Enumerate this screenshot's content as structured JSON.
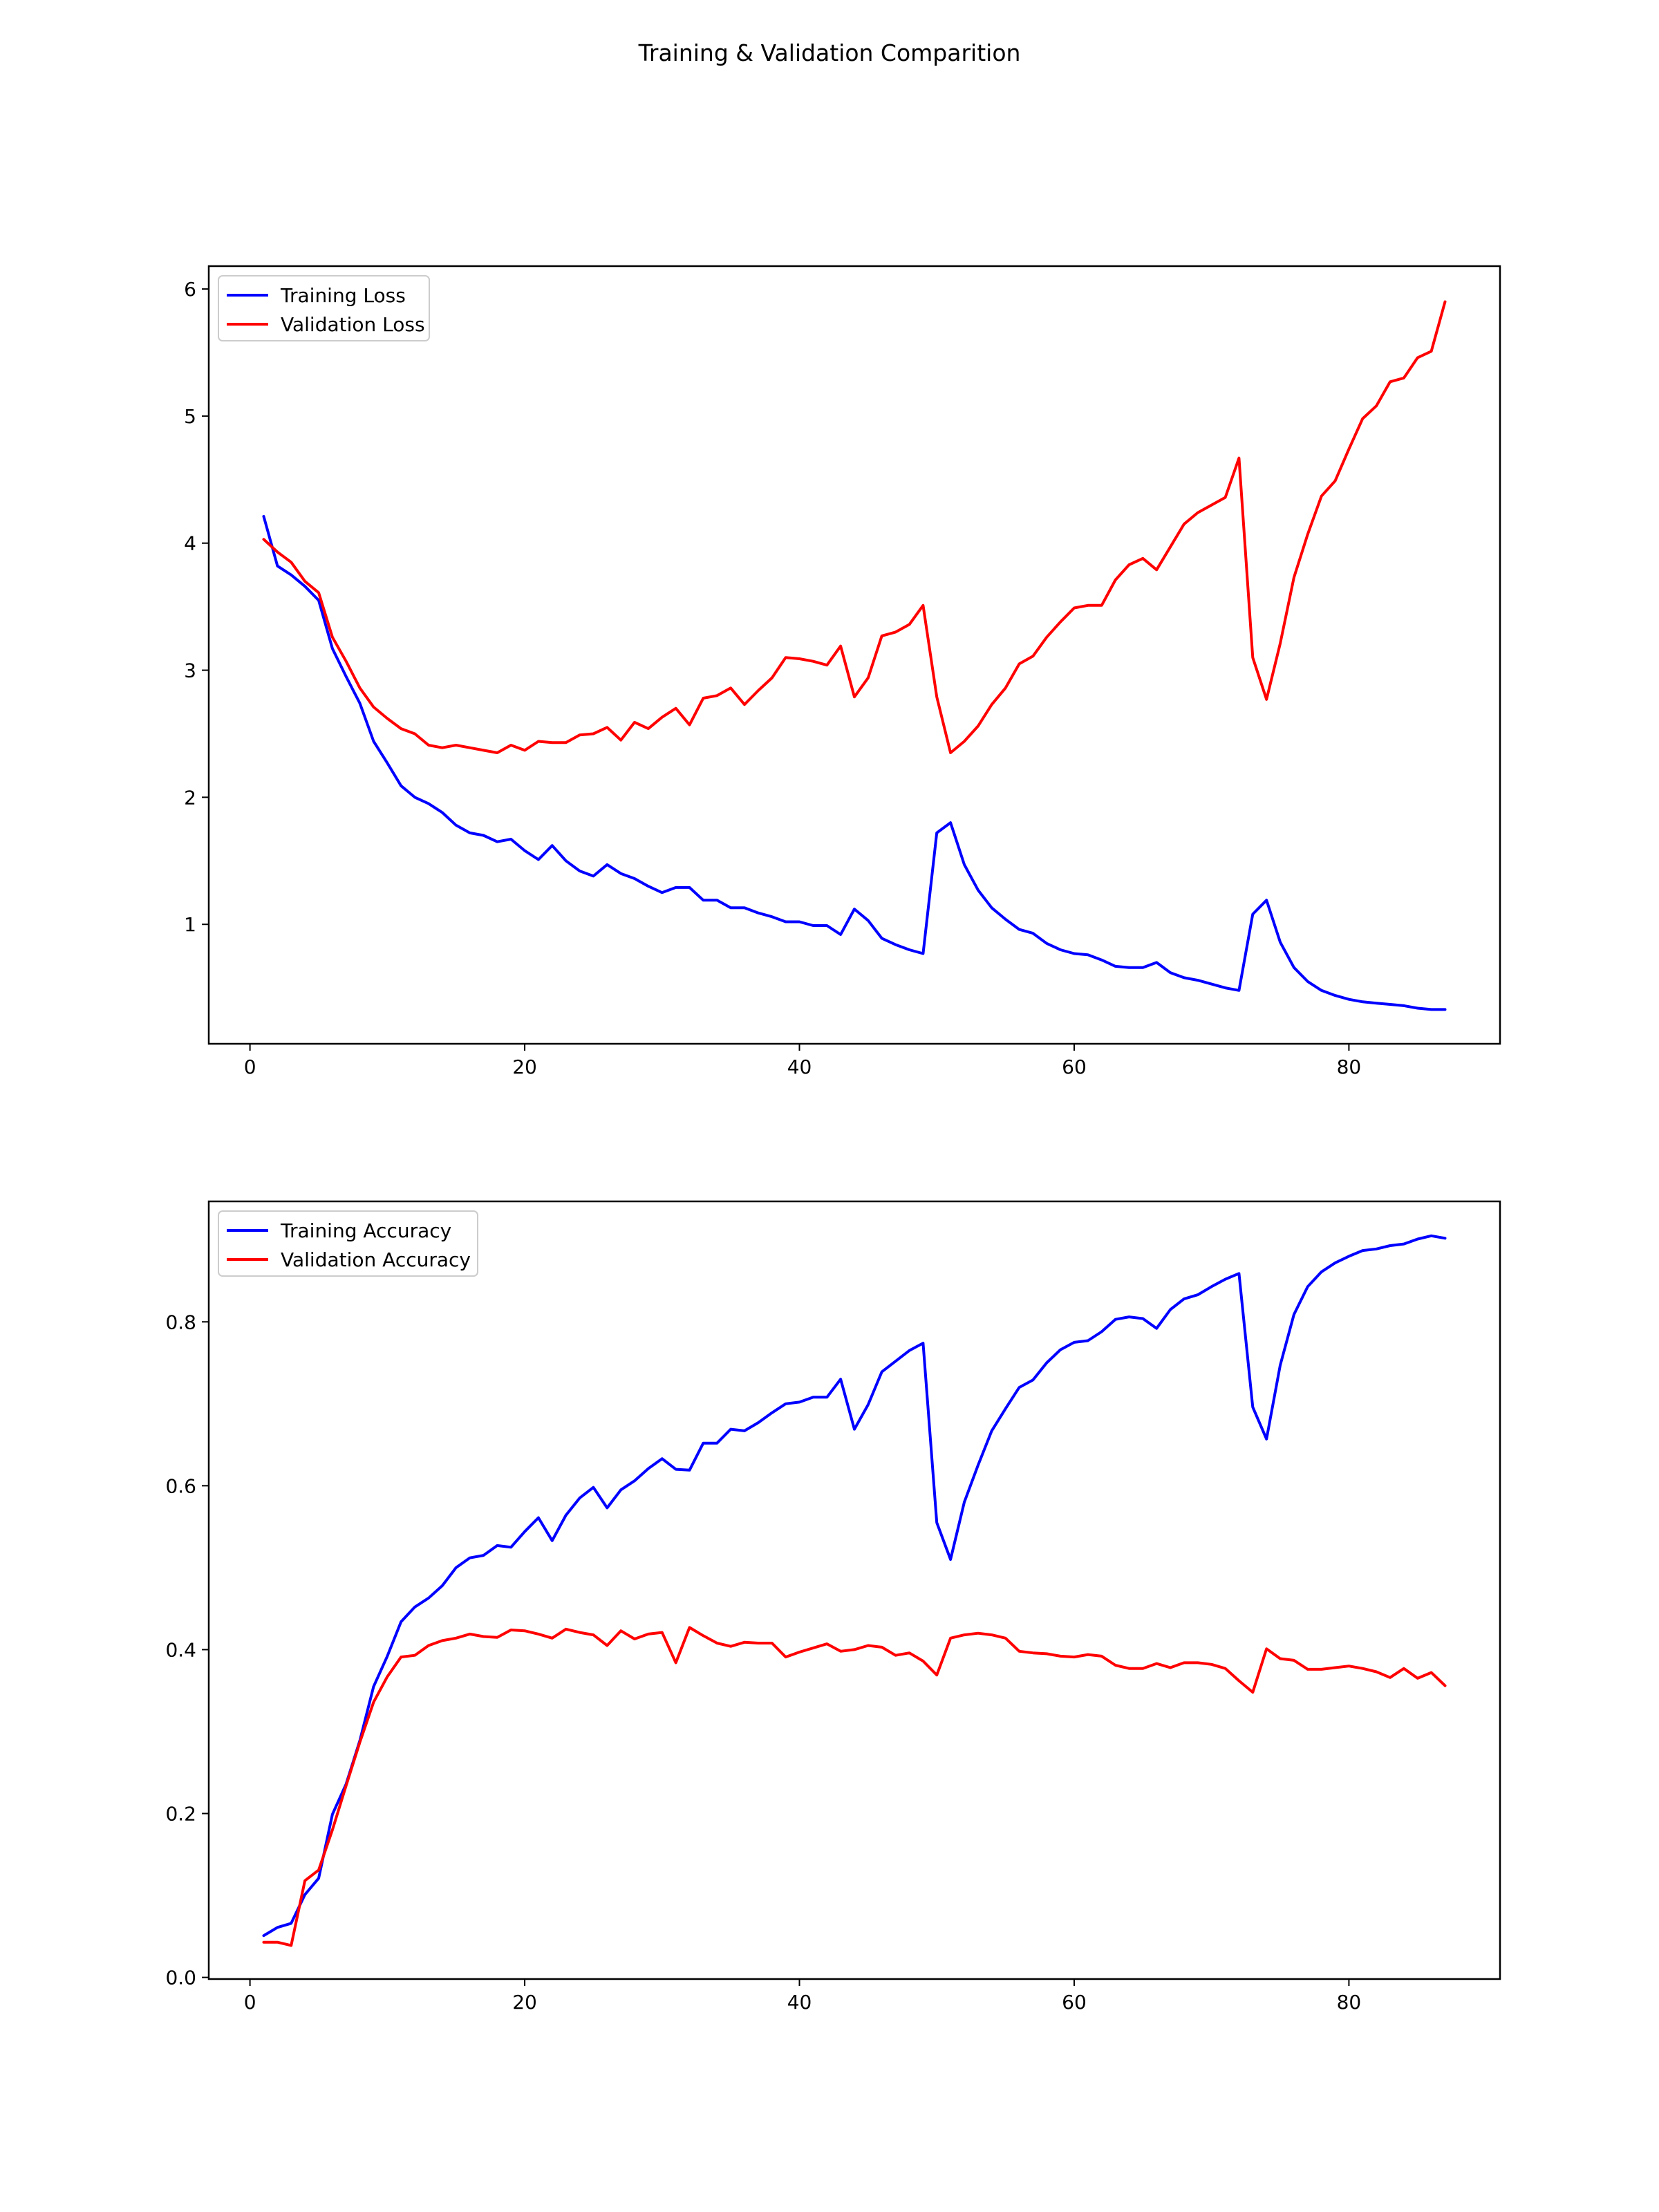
{
  "figure": {
    "title": "Training & Validation Comparition"
  },
  "colors": {
    "training": "#0000ff",
    "validation": "#ff0000"
  },
  "chart_data": [
    {
      "type": "line",
      "title": "",
      "xlabel": "",
      "ylabel": "",
      "xlim": [
        -3,
        91
      ],
      "ylim": [
        0.06,
        6.18
      ],
      "xticks": [
        0,
        20,
        40,
        60,
        80
      ],
      "yticks": [
        1,
        2,
        3,
        4,
        5,
        6
      ],
      "ytick_labels": [
        "1",
        "2",
        "3",
        "4",
        "5",
        "6"
      ],
      "grid": false,
      "legend_position": "upper-left",
      "x": [
        1,
        2,
        3,
        4,
        5,
        6,
        7,
        8,
        9,
        10,
        11,
        12,
        13,
        14,
        15,
        16,
        17,
        18,
        19,
        20,
        21,
        22,
        23,
        24,
        25,
        26,
        27,
        28,
        29,
        30,
        31,
        32,
        33,
        34,
        35,
        36,
        37,
        38,
        39,
        40,
        41,
        42,
        43,
        44,
        45,
        46,
        47,
        48,
        49,
        50,
        51,
        52,
        53,
        54,
        55,
        56,
        57,
        58,
        59,
        60,
        61,
        62,
        63,
        64,
        65,
        66,
        67,
        68,
        69,
        70,
        71,
        72,
        73,
        74,
        75,
        76,
        77,
        78,
        79,
        80,
        81,
        82,
        83,
        84,
        85,
        86,
        87
      ],
      "series": [
        {
          "name": "Training Loss",
          "color": "#0000ff",
          "values": [
            4.21,
            3.82,
            3.75,
            3.66,
            3.55,
            3.17,
            2.95,
            2.74,
            2.44,
            2.27,
            2.09,
            2.0,
            1.95,
            1.88,
            1.78,
            1.72,
            1.7,
            1.65,
            1.67,
            1.58,
            1.51,
            1.62,
            1.5,
            1.42,
            1.38,
            1.47,
            1.4,
            1.36,
            1.3,
            1.25,
            1.29,
            1.29,
            1.19,
            1.19,
            1.13,
            1.13,
            1.09,
            1.06,
            1.02,
            1.02,
            0.99,
            0.99,
            0.92,
            1.12,
            1.03,
            0.89,
            0.84,
            0.8,
            0.77,
            1.72,
            1.8,
            1.47,
            1.27,
            1.13,
            1.04,
            0.96,
            0.93,
            0.85,
            0.8,
            0.77,
            0.76,
            0.72,
            0.67,
            0.66,
            0.66,
            0.7,
            0.62,
            0.58,
            0.56,
            0.53,
            0.5,
            0.48,
            1.08,
            1.19,
            0.86,
            0.66,
            0.55,
            0.48,
            0.44,
            0.41,
            0.39,
            0.38,
            0.37,
            0.36,
            0.34,
            0.33,
            0.33
          ]
        },
        {
          "name": "Validation Loss",
          "color": "#ff0000",
          "values": [
            4.03,
            3.93,
            3.85,
            3.7,
            3.61,
            3.26,
            3.07,
            2.86,
            2.71,
            2.62,
            2.54,
            2.5,
            2.41,
            2.39,
            2.41,
            2.39,
            2.37,
            2.35,
            2.41,
            2.37,
            2.44,
            2.43,
            2.43,
            2.49,
            2.5,
            2.55,
            2.45,
            2.59,
            2.54,
            2.63,
            2.7,
            2.57,
            2.78,
            2.8,
            2.86,
            2.73,
            2.84,
            2.94,
            3.1,
            3.09,
            3.07,
            3.04,
            3.19,
            2.79,
            2.94,
            3.27,
            3.3,
            3.36,
            3.51,
            2.79,
            2.35,
            2.44,
            2.56,
            2.73,
            2.86,
            3.05,
            3.11,
            3.26,
            3.38,
            3.49,
            3.51,
            3.51,
            3.71,
            3.83,
            3.88,
            3.79,
            3.97,
            4.15,
            4.24,
            4.3,
            4.36,
            4.67,
            3.1,
            2.77,
            3.21,
            3.73,
            4.07,
            4.37,
            4.49,
            4.74,
            4.98,
            5.08,
            5.27,
            5.3,
            5.46,
            5.51,
            5.9
          ]
        }
      ]
    },
    {
      "type": "line",
      "title": "",
      "xlabel": "",
      "ylabel": "",
      "xlim": [
        -3,
        91
      ],
      "ylim": [
        -0.002,
        0.947
      ],
      "xticks": [
        0,
        20,
        40,
        60,
        80
      ],
      "yticks": [
        0.0,
        0.2,
        0.4,
        0.6,
        0.8
      ],
      "ytick_labels": [
        "0.0",
        "0.2",
        "0.4",
        "0.6",
        "0.8"
      ],
      "grid": false,
      "legend_position": "upper-left",
      "x": [
        1,
        2,
        3,
        4,
        5,
        6,
        7,
        8,
        9,
        10,
        11,
        12,
        13,
        14,
        15,
        16,
        17,
        18,
        19,
        20,
        21,
        22,
        23,
        24,
        25,
        26,
        27,
        28,
        29,
        30,
        31,
        32,
        33,
        34,
        35,
        36,
        37,
        38,
        39,
        40,
        41,
        42,
        43,
        44,
        45,
        46,
        47,
        48,
        49,
        50,
        51,
        52,
        53,
        54,
        55,
        56,
        57,
        58,
        59,
        60,
        61,
        62,
        63,
        64,
        65,
        66,
        67,
        68,
        69,
        70,
        71,
        72,
        73,
        74,
        75,
        76,
        77,
        78,
        79,
        80,
        81,
        82,
        83,
        84,
        85,
        86,
        87
      ],
      "series": [
        {
          "name": "Training Accuracy",
          "color": "#0000ff",
          "values": [
            0.051,
            0.061,
            0.066,
            0.101,
            0.121,
            0.199,
            0.236,
            0.289,
            0.355,
            0.392,
            0.434,
            0.452,
            0.463,
            0.478,
            0.5,
            0.512,
            0.515,
            0.527,
            0.525,
            0.544,
            0.561,
            0.533,
            0.564,
            0.585,
            0.598,
            0.573,
            0.595,
            0.606,
            0.621,
            0.633,
            0.62,
            0.619,
            0.652,
            0.652,
            0.669,
            0.667,
            0.677,
            0.689,
            0.7,
            0.702,
            0.708,
            0.708,
            0.73,
            0.669,
            0.699,
            0.739,
            0.752,
            0.765,
            0.774,
            0.555,
            0.51,
            0.58,
            0.625,
            0.667,
            0.694,
            0.72,
            0.729,
            0.75,
            0.766,
            0.775,
            0.777,
            0.788,
            0.803,
            0.806,
            0.804,
            0.792,
            0.815,
            0.828,
            0.833,
            0.843,
            0.852,
            0.859,
            0.696,
            0.657,
            0.747,
            0.809,
            0.843,
            0.861,
            0.872,
            0.88,
            0.887,
            0.889,
            0.893,
            0.895,
            0.901,
            0.905,
            0.902
          ]
        },
        {
          "name": "Validation Accuracy",
          "color": "#ff0000",
          "values": [
            0.043,
            0.043,
            0.039,
            0.118,
            0.131,
            0.18,
            0.234,
            0.287,
            0.336,
            0.367,
            0.391,
            0.393,
            0.405,
            0.411,
            0.414,
            0.419,
            0.416,
            0.415,
            0.424,
            0.423,
            0.419,
            0.414,
            0.425,
            0.421,
            0.418,
            0.405,
            0.423,
            0.413,
            0.419,
            0.421,
            0.384,
            0.427,
            0.417,
            0.408,
            0.404,
            0.409,
            0.408,
            0.408,
            0.391,
            0.397,
            0.402,
            0.407,
            0.398,
            0.4,
            0.405,
            0.403,
            0.393,
            0.396,
            0.386,
            0.369,
            0.414,
            0.418,
            0.42,
            0.418,
            0.414,
            0.398,
            0.396,
            0.395,
            0.392,
            0.391,
            0.394,
            0.392,
            0.381,
            0.377,
            0.377,
            0.383,
            0.378,
            0.384,
            0.384,
            0.382,
            0.377,
            0.362,
            0.348,
            0.401,
            0.389,
            0.387,
            0.376,
            0.376,
            0.378,
            0.38,
            0.377,
            0.373,
            0.366,
            0.377,
            0.365,
            0.372,
            0.356
          ]
        }
      ]
    }
  ]
}
